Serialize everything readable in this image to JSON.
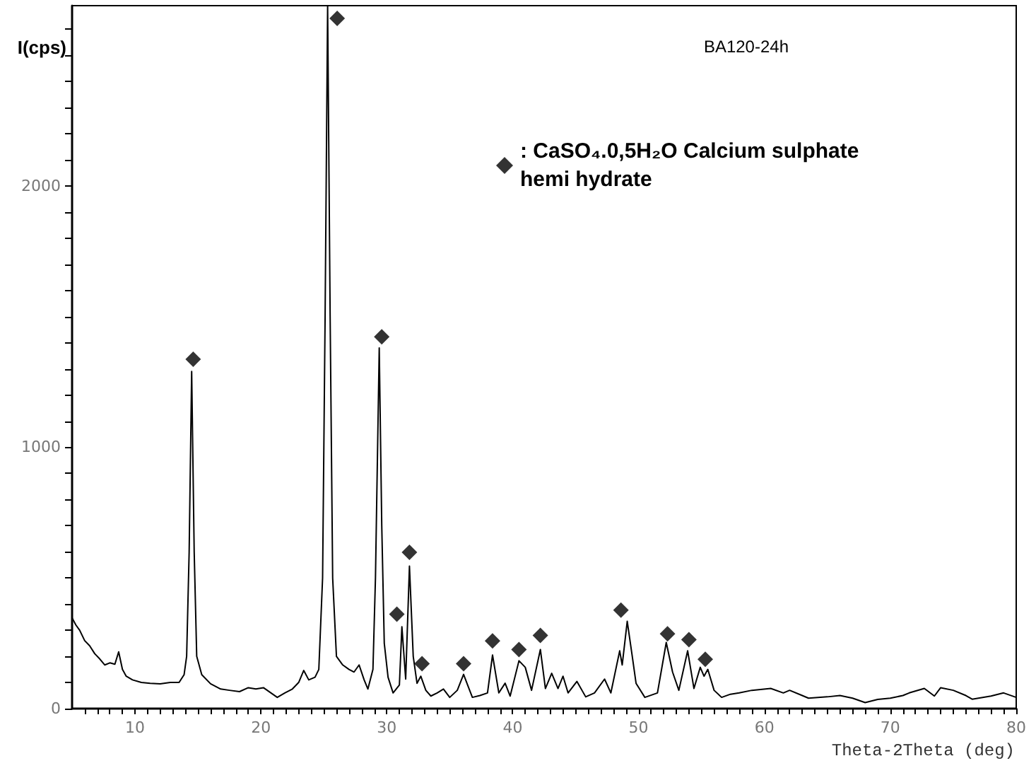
{
  "chart_data": {
    "type": "line",
    "title": "BA120-24h",
    "xlabel": "Theta-2Theta (deg)",
    "ylabel": "I(cps)",
    "xlim": [
      5,
      80
    ],
    "ylim": [
      0,
      2690
    ],
    "xticks": [
      {
        "value": 6,
        "label": null
      },
      {
        "value": 7,
        "label": null
      },
      {
        "value": 8,
        "label": null
      },
      {
        "value": 9,
        "label": null
      },
      10,
      {
        "value": 11,
        "label": null
      },
      {
        "value": 12,
        "label": null
      },
      {
        "value": 13,
        "label": null
      },
      {
        "value": 14,
        "label": null
      },
      {
        "value": 15,
        "label": null
      },
      {
        "value": 16,
        "label": null
      },
      {
        "value": 17,
        "label": null
      },
      {
        "value": 18,
        "label": null
      },
      {
        "value": 19,
        "label": null
      },
      20,
      {
        "value": 21,
        "label": null
      },
      {
        "value": 22,
        "label": null
      },
      {
        "value": 23,
        "label": null
      },
      {
        "value": 24,
        "label": null
      },
      {
        "value": 25,
        "label": null
      },
      {
        "value": 26,
        "label": null
      },
      {
        "value": 27,
        "label": null
      },
      {
        "value": 28,
        "label": null
      },
      {
        "value": 29,
        "label": null
      },
      30,
      {
        "value": 31,
        "label": null
      },
      {
        "value": 32,
        "label": null
      },
      {
        "value": 33,
        "label": null
      },
      {
        "value": 34,
        "label": null
      },
      {
        "value": 35,
        "label": null
      },
      {
        "value": 36,
        "label": null
      },
      {
        "value": 37,
        "label": null
      },
      {
        "value": 38,
        "label": null
      },
      {
        "value": 39,
        "label": null
      },
      40,
      {
        "value": 41,
        "label": null
      },
      {
        "value": 42,
        "label": null
      },
      {
        "value": 43,
        "label": null
      },
      {
        "value": 44,
        "label": null
      },
      {
        "value": 45,
        "label": null
      },
      {
        "value": 46,
        "label": null
      },
      {
        "value": 47,
        "label": null
      },
      {
        "value": 48,
        "label": null
      },
      {
        "value": 49,
        "label": null
      },
      50,
      {
        "value": 51,
        "label": null
      },
      {
        "value": 52,
        "label": null
      },
      {
        "value": 53,
        "label": null
      },
      {
        "value": 54,
        "label": null
      },
      {
        "value": 55,
        "label": null
      },
      {
        "value": 56,
        "label": null
      },
      {
        "value": 57,
        "label": null
      },
      {
        "value": 58,
        "label": null
      },
      {
        "value": 59,
        "label": null
      },
      60,
      {
        "value": 61,
        "label": null
      },
      {
        "value": 62,
        "label": null
      },
      {
        "value": 63,
        "label": null
      },
      {
        "value": 64,
        "label": null
      },
      {
        "value": 65,
        "label": null
      },
      {
        "value": 66,
        "label": null
      },
      {
        "value": 67,
        "label": null
      },
      {
        "value": 68,
        "label": null
      },
      {
        "value": 69,
        "label": null
      },
      70,
      {
        "value": 71,
        "label": null
      },
      {
        "value": 72,
        "label": null
      },
      {
        "value": 73,
        "label": null
      },
      {
        "value": 74,
        "label": null
      },
      {
        "value": 75,
        "label": null
      },
      {
        "value": 76,
        "label": null
      },
      {
        "value": 77,
        "label": null
      },
      {
        "value": 78,
        "label": null
      },
      {
        "value": 79,
        "label": null
      },
      80
    ],
    "yticks": [
      0,
      {
        "value": 100,
        "label": null
      },
      {
        "value": 200,
        "label": null
      },
      {
        "value": 300,
        "label": null
      },
      {
        "value": 400,
        "label": null
      },
      {
        "value": 500,
        "label": null
      },
      {
        "value": 600,
        "label": null
      },
      {
        "value": 700,
        "label": null
      },
      {
        "value": 800,
        "label": null
      },
      {
        "value": 900,
        "label": null
      },
      1000,
      {
        "value": 1100,
        "label": null
      },
      {
        "value": 1200,
        "label": null
      },
      {
        "value": 1300,
        "label": null
      },
      {
        "value": 1400,
        "label": null
      },
      {
        "value": 1500,
        "label": null
      },
      {
        "value": 1600,
        "label": null
      },
      {
        "value": 1700,
        "label": null
      },
      {
        "value": 1800,
        "label": null
      },
      {
        "value": 1900,
        "label": null
      },
      2000,
      {
        "value": 2100,
        "label": null
      },
      {
        "value": 2200,
        "label": null
      },
      {
        "value": 2300,
        "label": null
      },
      {
        "value": 2400,
        "label": null
      },
      {
        "value": 2500,
        "label": null
      },
      {
        "value": 2600,
        "label": null
      }
    ],
    "grid": false,
    "legend": "top right",
    "series": [
      {
        "color": "#000000",
        "marker": "none",
        "x": [
          5,
          5.3,
          5.6,
          6,
          6.4,
          6.8,
          7.2,
          7.6,
          8,
          8.4,
          8.7,
          9,
          9.3,
          9.8,
          10.5,
          11.2,
          12,
          12.8,
          13.5,
          13.9,
          14.1,
          14.3,
          14.5,
          14.7,
          14.9,
          15.3,
          16,
          16.8,
          17.5,
          18.3,
          19,
          19.6,
          20.2,
          20.8,
          21.3,
          21.9,
          22.5,
          23,
          23.4,
          23.8,
          24.3,
          24.6,
          24.9,
          25.1,
          25.3,
          25.5,
          25.7,
          26,
          26.5,
          27,
          27.4,
          27.8,
          28.2,
          28.5,
          28.9,
          29.1,
          29.4,
          29.6,
          29.8,
          30.1,
          30.5,
          31,
          31.2,
          31.5,
          31.8,
          32.1,
          32.4,
          32.7,
          33.1,
          33.5,
          34,
          34.5,
          35,
          35.6,
          36.1,
          36.5,
          36.8,
          37.4,
          38,
          38.4,
          38.9,
          39.4,
          39.8,
          40.5,
          41,
          41.5,
          42.2,
          42.6,
          43.1,
          43.6,
          44,
          44.4,
          45.1,
          45.8,
          46.5,
          47.3,
          47.8,
          48.5,
          48.7,
          49.1,
          49.5,
          49.8,
          50.5,
          51.5,
          52.2,
          52.7,
          53.2,
          53.9,
          54.4,
          54.9,
          55.2,
          55.5,
          56,
          56.6,
          57.3,
          58,
          59,
          60.5,
          61.5,
          62,
          63,
          63.5,
          65,
          66,
          67,
          68,
          69,
          70,
          71,
          71.5,
          72.7,
          73.5,
          74,
          75,
          76,
          76.5,
          78,
          79,
          80
        ],
        "values": [
          347,
          320,
          300,
          260,
          240,
          210,
          190,
          167,
          175,
          170,
          217,
          150,
          124,
          110,
          100,
          97,
          95,
          100,
          100,
          130,
          200,
          600,
          1290,
          600,
          200,
          130,
          95,
          75,
          70,
          65,
          80,
          75,
          80,
          60,
          43,
          60,
          75,
          100,
          146,
          110,
          120,
          150,
          500,
          1500,
          2690,
          1500,
          500,
          200,
          167,
          150,
          140,
          167,
          110,
          75,
          150,
          500,
          1380,
          700,
          250,
          120,
          60,
          90,
          313,
          113,
          545,
          200,
          97,
          124,
          70,
          48,
          60,
          75,
          43,
          70,
          131,
          80,
          43,
          50,
          60,
          205,
          60,
          97,
          48,
          183,
          158,
          70,
          226,
          77,
          135,
          77,
          124,
          60,
          104,
          45,
          60,
          113,
          60,
          221,
          167,
          334,
          200,
          97,
          43,
          60,
          253,
          140,
          70,
          221,
          77,
          158,
          124,
          150,
          70,
          43,
          55,
          60,
          70,
          77,
          60,
          70,
          50,
          40,
          45,
          50,
          40,
          23,
          35,
          40,
          50,
          60,
          77,
          48,
          80,
          70,
          50,
          36,
          48,
          60,
          43
        ]
      },
      {
        "type": "scatter",
        "name": ": CaSO₄.0,5H₂O Calcium sulphate hemi hydrate",
        "color": "#000000",
        "marker": "diamond",
        "x": [
          14.62,
          26.06,
          29.6,
          30.8,
          31.8,
          32.8,
          36.1,
          38.4,
          40.5,
          42.2,
          48.6,
          52.3,
          54.0,
          55.3
        ],
        "values": [
          1337,
          2641,
          1423,
          361,
          598,
          172,
          172,
          259,
          226,
          280,
          377,
          286,
          264,
          189
        ]
      }
    ]
  }
}
